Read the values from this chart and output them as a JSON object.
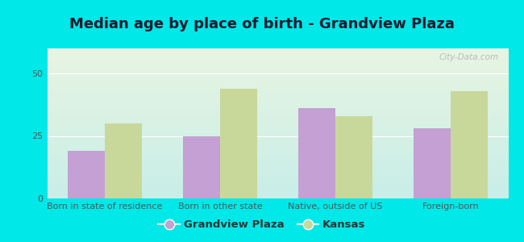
{
  "title": "Median age by place of birth - Grandview Plaza",
  "categories": [
    "Born in state of residence",
    "Born in other state",
    "Native, outside of US",
    "Foreign-born"
  ],
  "grandview_values": [
    19,
    25,
    36,
    28
  ],
  "kansas_values": [
    30,
    44,
    33,
    43
  ],
  "bar_color_grandview": "#c4a0d4",
  "bar_color_kansas": "#c8d89a",
  "background_outer": "#00e8e8",
  "bg_grad_top": "#e8f5e2",
  "bg_grad_bottom": "#c8eee8",
  "ylim": [
    0,
    60
  ],
  "yticks": [
    0,
    25,
    50
  ],
  "legend_labels": [
    "Grandview Plaza",
    "Kansas"
  ],
  "bar_width": 0.32,
  "title_fontsize": 13,
  "tick_fontsize": 8,
  "legend_fontsize": 9.5,
  "watermark": "City-Data.com",
  "title_color": "#1a1a2e",
  "tick_color": "#555555",
  "grid_color": "#ffffff"
}
